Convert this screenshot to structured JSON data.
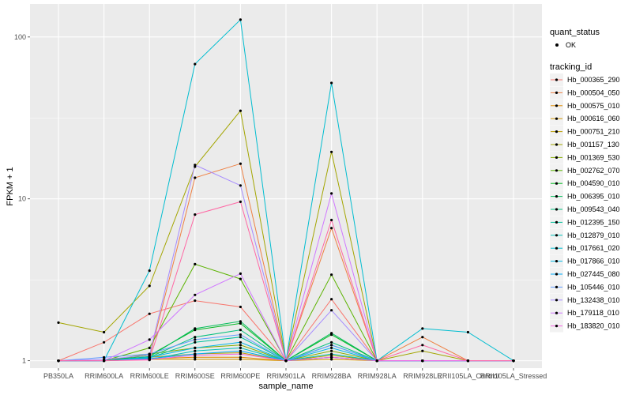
{
  "chart_data": {
    "type": "line",
    "xlabel": "sample_name",
    "ylabel": "FPKM + 1",
    "y_scale": "log10",
    "ylim": [
      0.9,
      160
    ],
    "y_ticks": [
      1,
      10,
      100
    ],
    "y_tick_labels": [
      "1",
      "10",
      "100"
    ],
    "grid": true,
    "background_color": "#EBEBEB",
    "grid_color": "#FFFFFF",
    "point_color": "#000000",
    "categories": [
      "PB350LA",
      "RRIM600LA",
      "RRIM600LE",
      "RRIM600SE",
      "RRIM600PE",
      "RRIM901LA",
      "RRIM928BA",
      "RRIM928LA",
      "RRIM928LE",
      "RRII105LA_Control",
      "RRII105LA_Stressed"
    ],
    "legend_position": "right",
    "legend_shape": {
      "title": "quant_status",
      "items": [
        "OK"
      ]
    },
    "legend_color": {
      "title": "tracking_id"
    },
    "series": [
      {
        "name": "Hb_000365_290",
        "color": "#F8766D",
        "values": [
          1,
          1.3,
          1.95,
          2.35,
          2.15,
          1,
          2.4,
          1,
          1,
          1,
          1
        ]
      },
      {
        "name": "Hb_000504_050",
        "color": "#EE8043",
        "values": [
          1,
          1,
          1.05,
          13.5,
          16.5,
          1,
          6.6,
          1,
          1.4,
          1,
          1
        ]
      },
      {
        "name": "Hb_000575_010",
        "color": "#E08B00",
        "values": [
          1,
          1,
          1.03,
          1.05,
          1.05,
          1,
          1.05,
          1,
          1,
          1,
          1
        ]
      },
      {
        "name": "Hb_000616_060",
        "color": "#CF9400",
        "values": [
          1,
          1,
          1.02,
          1.02,
          1.02,
          1,
          1.02,
          1,
          1,
          1,
          1
        ]
      },
      {
        "name": "Hb_000751_210",
        "color": "#BB9D00",
        "values": [
          1,
          1,
          1.05,
          1.1,
          1.12,
          1,
          1.08,
          1,
          1,
          1,
          1
        ]
      },
      {
        "name": "Hb_001157_130",
        "color": "#A3A500",
        "values": [
          1.72,
          1.5,
          2.9,
          15.8,
          35,
          1,
          19.5,
          1,
          1.15,
          1,
          1
        ]
      },
      {
        "name": "Hb_001369_530",
        "color": "#85AD00",
        "values": [
          1,
          1,
          1.1,
          1.2,
          1.25,
          1,
          1.15,
          1,
          1,
          1,
          1
        ]
      },
      {
        "name": "Hb_002762_070",
        "color": "#5BB300",
        "values": [
          1,
          1,
          1.2,
          3.95,
          3.2,
          1,
          3.4,
          1,
          1,
          1,
          1
        ]
      },
      {
        "name": "Hb_004590_010",
        "color": "#00B81F",
        "values": [
          1,
          1,
          1.08,
          1.55,
          1.7,
          1,
          1.45,
          1,
          1,
          1,
          1
        ]
      },
      {
        "name": "Hb_006395_010",
        "color": "#00BC59",
        "values": [
          1,
          1,
          1.06,
          1.58,
          1.75,
          1,
          1.48,
          1,
          1,
          1,
          1
        ]
      },
      {
        "name": "Hb_009543_040",
        "color": "#00BF7D",
        "values": [
          1,
          1,
          1.05,
          1.4,
          1.55,
          1,
          1.3,
          1,
          1,
          1,
          1
        ]
      },
      {
        "name": "Hb_012395_150",
        "color": "#00C19C",
        "values": [
          1,
          1,
          1.04,
          1.3,
          1.4,
          1,
          1.25,
          1,
          1,
          1,
          1
        ]
      },
      {
        "name": "Hb_012879_010",
        "color": "#00C0B8",
        "values": [
          1,
          1,
          1.02,
          1.15,
          1.2,
          1,
          1.1,
          1,
          1,
          1,
          1
        ]
      },
      {
        "name": "Hb_017661_020",
        "color": "#00BDD0",
        "values": [
          1,
          1,
          3.6,
          68,
          128,
          1,
          52,
          1,
          1.58,
          1.5,
          1
        ]
      },
      {
        "name": "Hb_017866_010",
        "color": "#00B5E5",
        "values": [
          1,
          1,
          1.05,
          1.2,
          1.3,
          1,
          1.2,
          1,
          1,
          1,
          1
        ]
      },
      {
        "name": "Hb_027445_080",
        "color": "#00ABF8",
        "values": [
          1,
          1,
          1.03,
          1.1,
          1.15,
          1,
          1.05,
          1,
          1,
          1,
          1
        ]
      },
      {
        "name": "Hb_105446_010",
        "color": "#619CFF",
        "values": [
          1,
          1.05,
          1.1,
          1.35,
          1.45,
          1,
          1.25,
          1,
          1,
          1,
          1
        ]
      },
      {
        "name": "Hb_132438_010",
        "color": "#A58AFF",
        "values": [
          1,
          1.02,
          1.08,
          16.2,
          12.1,
          1,
          2.05,
          1,
          1,
          1,
          1
        ]
      },
      {
        "name": "Hb_179118_010",
        "color": "#D078FF",
        "values": [
          1,
          1,
          1.35,
          2.55,
          3.45,
          1,
          10.8,
          1,
          1,
          1,
          1
        ]
      },
      {
        "name": "Hb_183820_010",
        "color": "#F564E3",
        "values": [
          1,
          1,
          1.02,
          1.08,
          1.1,
          1,
          1.05,
          1,
          1,
          1,
          1
        ]
      },
      {
        "name": "",
        "color": "#FF67A4",
        "values": [
          1,
          1,
          1.01,
          8,
          9.6,
          1,
          7.4,
          1,
          1.25,
          1,
          1
        ]
      }
    ]
  }
}
